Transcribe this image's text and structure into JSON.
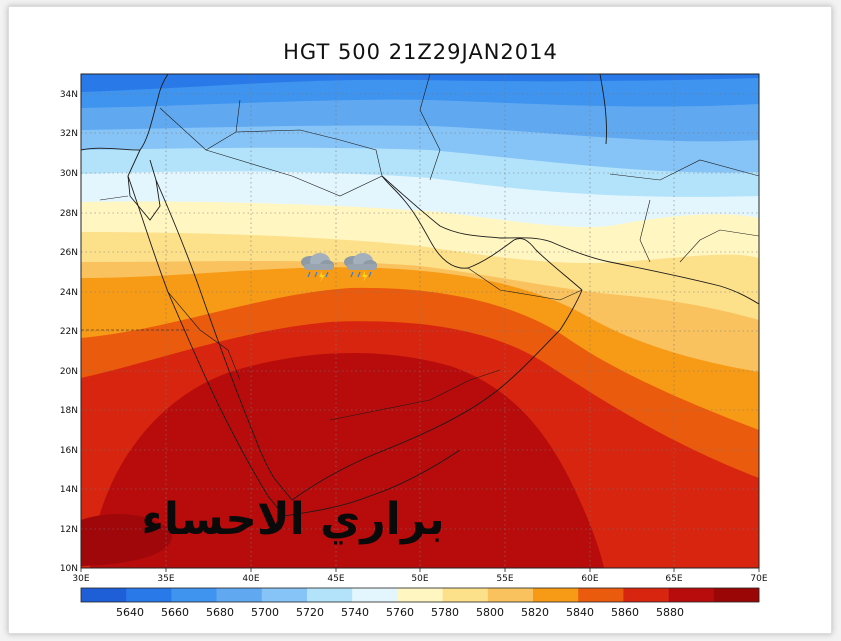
{
  "title": "HGT 500 21Z29JAN2014",
  "watermark_text": "براري الاحساء",
  "map": {
    "lon_range": [
      30,
      70
    ],
    "lat_range": [
      10,
      35
    ],
    "x_ticks": [
      "30E",
      "35E",
      "40E",
      "45E",
      "50E",
      "55E",
      "60E",
      "65E",
      "70E"
    ],
    "y_ticks": [
      "10N",
      "12N",
      "14N",
      "16N",
      "18N",
      "20N",
      "22N",
      "24N",
      "26N",
      "28N",
      "30N",
      "32N",
      "34N"
    ],
    "weather_icons": [
      "rain-cloud-icon",
      "rain-cloud-icon"
    ]
  },
  "colorbar": {
    "labels": [
      "5640",
      "5660",
      "5680",
      "5700",
      "5720",
      "5740",
      "5760",
      "5780",
      "5800",
      "5820",
      "5840",
      "5860",
      "5880"
    ],
    "colors": [
      "#1e5fd8",
      "#2a79e9",
      "#3f94ef",
      "#60a9f1",
      "#86c3f6",
      "#b2e3fb",
      "#e4f6fd",
      "#fff6c2",
      "#fde08a",
      "#f9c25e",
      "#f79b16",
      "#ea5b0e",
      "#d7250f",
      "#b80c0c",
      "#9a0606"
    ]
  }
}
